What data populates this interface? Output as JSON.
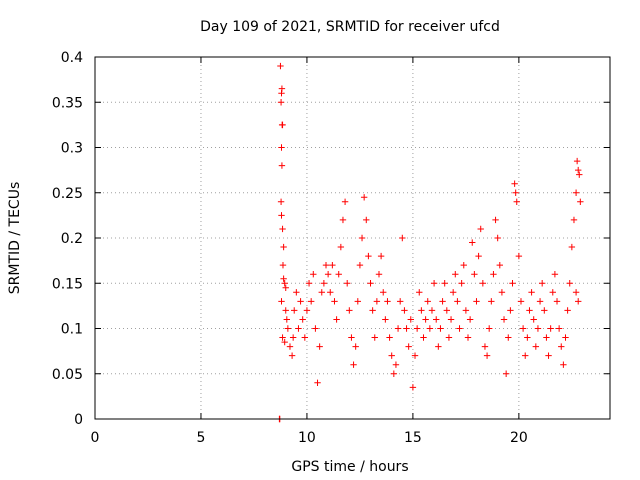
{
  "chart_data": {
    "type": "scatter",
    "title": "Day 109 of 2021, SRMTID for receiver ufcd",
    "xlabel": "GPS time / hours",
    "ylabel": "SRMTID / TECUs",
    "xlim": [
      0,
      24.3
    ],
    "ylim": [
      0,
      0.4
    ],
    "grid": true,
    "x_ticks": [
      0,
      5,
      10,
      15,
      20
    ],
    "x_tick_labels": [
      "0",
      "5",
      "10",
      "15",
      "20"
    ],
    "y_ticks": [
      0,
      0.05,
      0.1,
      0.15,
      0.2,
      0.25,
      0.3,
      0.35,
      0.4
    ],
    "y_tick_labels": [
      "0",
      "0.05",
      "0.1",
      "0.15",
      "0.2",
      "0.25",
      "0.3",
      "0.35",
      "0.4"
    ],
    "marker": "plus",
    "marker_color": "#ff0000",
    "grid_color": "#a0a0a0",
    "series": [
      {
        "name": "SRMTID",
        "points": [
          [
            8.7,
            0.0
          ],
          [
            8.72,
            0.0
          ],
          [
            8.75,
            0.39
          ],
          [
            8.8,
            0.36
          ],
          [
            8.82,
            0.365
          ],
          [
            8.78,
            0.35
          ],
          [
            8.85,
            0.325
          ],
          [
            8.83,
            0.325
          ],
          [
            8.8,
            0.3
          ],
          [
            8.82,
            0.28
          ],
          [
            8.78,
            0.24
          ],
          [
            8.8,
            0.225
          ],
          [
            8.85,
            0.21
          ],
          [
            8.9,
            0.19
          ],
          [
            8.87,
            0.17
          ],
          [
            8.9,
            0.155
          ],
          [
            8.95,
            0.15
          ],
          [
            9.0,
            0.145
          ],
          [
            8.8,
            0.13
          ],
          [
            8.85,
            0.09
          ],
          [
            8.95,
            0.085
          ],
          [
            9.0,
            0.12
          ],
          [
            9.05,
            0.11
          ],
          [
            9.1,
            0.1
          ],
          [
            9.2,
            0.08
          ],
          [
            9.3,
            0.07
          ],
          [
            9.35,
            0.09
          ],
          [
            9.4,
            0.12
          ],
          [
            9.5,
            0.14
          ],
          [
            9.6,
            0.1
          ],
          [
            9.7,
            0.13
          ],
          [
            9.8,
            0.11
          ],
          [
            9.9,
            0.09
          ],
          [
            10.0,
            0.12
          ],
          [
            10.1,
            0.15
          ],
          [
            10.2,
            0.13
          ],
          [
            10.3,
            0.16
          ],
          [
            10.4,
            0.1
          ],
          [
            10.5,
            0.04
          ],
          [
            10.6,
            0.08
          ],
          [
            10.7,
            0.14
          ],
          [
            10.8,
            0.15
          ],
          [
            10.9,
            0.17
          ],
          [
            11.0,
            0.16
          ],
          [
            11.1,
            0.14
          ],
          [
            11.2,
            0.17
          ],
          [
            11.3,
            0.13
          ],
          [
            11.4,
            0.11
          ],
          [
            11.5,
            0.16
          ],
          [
            11.6,
            0.19
          ],
          [
            11.7,
            0.22
          ],
          [
            11.8,
            0.24
          ],
          [
            11.9,
            0.15
          ],
          [
            12.0,
            0.12
          ],
          [
            12.1,
            0.09
          ],
          [
            12.2,
            0.06
          ],
          [
            12.3,
            0.08
          ],
          [
            12.4,
            0.13
          ],
          [
            12.5,
            0.17
          ],
          [
            12.6,
            0.2
          ],
          [
            12.7,
            0.245
          ],
          [
            12.8,
            0.22
          ],
          [
            12.9,
            0.18
          ],
          [
            13.0,
            0.15
          ],
          [
            13.1,
            0.12
          ],
          [
            13.2,
            0.09
          ],
          [
            13.3,
            0.13
          ],
          [
            13.4,
            0.16
          ],
          [
            13.5,
            0.18
          ],
          [
            13.6,
            0.14
          ],
          [
            13.7,
            0.11
          ],
          [
            13.8,
            0.13
          ],
          [
            13.9,
            0.09
          ],
          [
            14.0,
            0.07
          ],
          [
            14.1,
            0.05
          ],
          [
            14.2,
            0.06
          ],
          [
            14.3,
            0.1
          ],
          [
            14.4,
            0.13
          ],
          [
            14.5,
            0.2
          ],
          [
            14.6,
            0.12
          ],
          [
            14.7,
            0.1
          ],
          [
            14.8,
            0.08
          ],
          [
            14.9,
            0.11
          ],
          [
            15.0,
            0.035
          ],
          [
            15.1,
            0.07
          ],
          [
            15.2,
            0.1
          ],
          [
            15.3,
            0.14
          ],
          [
            15.4,
            0.12
          ],
          [
            15.5,
            0.09
          ],
          [
            15.6,
            0.11
          ],
          [
            15.7,
            0.13
          ],
          [
            15.8,
            0.1
          ],
          [
            15.9,
            0.12
          ],
          [
            16.0,
            0.15
          ],
          [
            16.1,
            0.11
          ],
          [
            16.2,
            0.08
          ],
          [
            16.3,
            0.1
          ],
          [
            16.4,
            0.13
          ],
          [
            16.5,
            0.15
          ],
          [
            16.6,
            0.12
          ],
          [
            16.7,
            0.09
          ],
          [
            16.8,
            0.11
          ],
          [
            16.9,
            0.14
          ],
          [
            17.0,
            0.16
          ],
          [
            17.1,
            0.13
          ],
          [
            17.2,
            0.1
          ],
          [
            17.3,
            0.15
          ],
          [
            17.4,
            0.17
          ],
          [
            17.5,
            0.12
          ],
          [
            17.6,
            0.09
          ],
          [
            17.7,
            0.11
          ],
          [
            17.8,
            0.195
          ],
          [
            17.9,
            0.16
          ],
          [
            18.0,
            0.13
          ],
          [
            18.1,
            0.18
          ],
          [
            18.2,
            0.21
          ],
          [
            18.3,
            0.15
          ],
          [
            18.4,
            0.08
          ],
          [
            18.5,
            0.07
          ],
          [
            18.6,
            0.1
          ],
          [
            18.7,
            0.13
          ],
          [
            18.8,
            0.16
          ],
          [
            18.9,
            0.22
          ],
          [
            19.0,
            0.2
          ],
          [
            19.1,
            0.17
          ],
          [
            19.2,
            0.14
          ],
          [
            19.3,
            0.11
          ],
          [
            19.4,
            0.05
          ],
          [
            19.5,
            0.09
          ],
          [
            19.6,
            0.12
          ],
          [
            19.7,
            0.15
          ],
          [
            19.8,
            0.26
          ],
          [
            19.85,
            0.25
          ],
          [
            19.9,
            0.24
          ],
          [
            20.0,
            0.18
          ],
          [
            20.1,
            0.13
          ],
          [
            20.2,
            0.1
          ],
          [
            20.3,
            0.07
          ],
          [
            20.4,
            0.09
          ],
          [
            20.5,
            0.12
          ],
          [
            20.6,
            0.14
          ],
          [
            20.7,
            0.11
          ],
          [
            20.8,
            0.08
          ],
          [
            20.9,
            0.1
          ],
          [
            21.0,
            0.13
          ],
          [
            21.1,
            0.15
          ],
          [
            21.2,
            0.12
          ],
          [
            21.3,
            0.09
          ],
          [
            21.4,
            0.07
          ],
          [
            21.5,
            0.1
          ],
          [
            21.6,
            0.14
          ],
          [
            21.7,
            0.16
          ],
          [
            21.8,
            0.13
          ],
          [
            21.9,
            0.1
          ],
          [
            22.0,
            0.08
          ],
          [
            22.1,
            0.06
          ],
          [
            22.2,
            0.09
          ],
          [
            22.3,
            0.12
          ],
          [
            22.4,
            0.15
          ],
          [
            22.5,
            0.19
          ],
          [
            22.6,
            0.22
          ],
          [
            22.7,
            0.25
          ],
          [
            22.75,
            0.285
          ],
          [
            22.8,
            0.275
          ],
          [
            22.85,
            0.27
          ],
          [
            22.9,
            0.24
          ],
          [
            22.7,
            0.14
          ],
          [
            22.8,
            0.13
          ]
        ]
      }
    ]
  }
}
